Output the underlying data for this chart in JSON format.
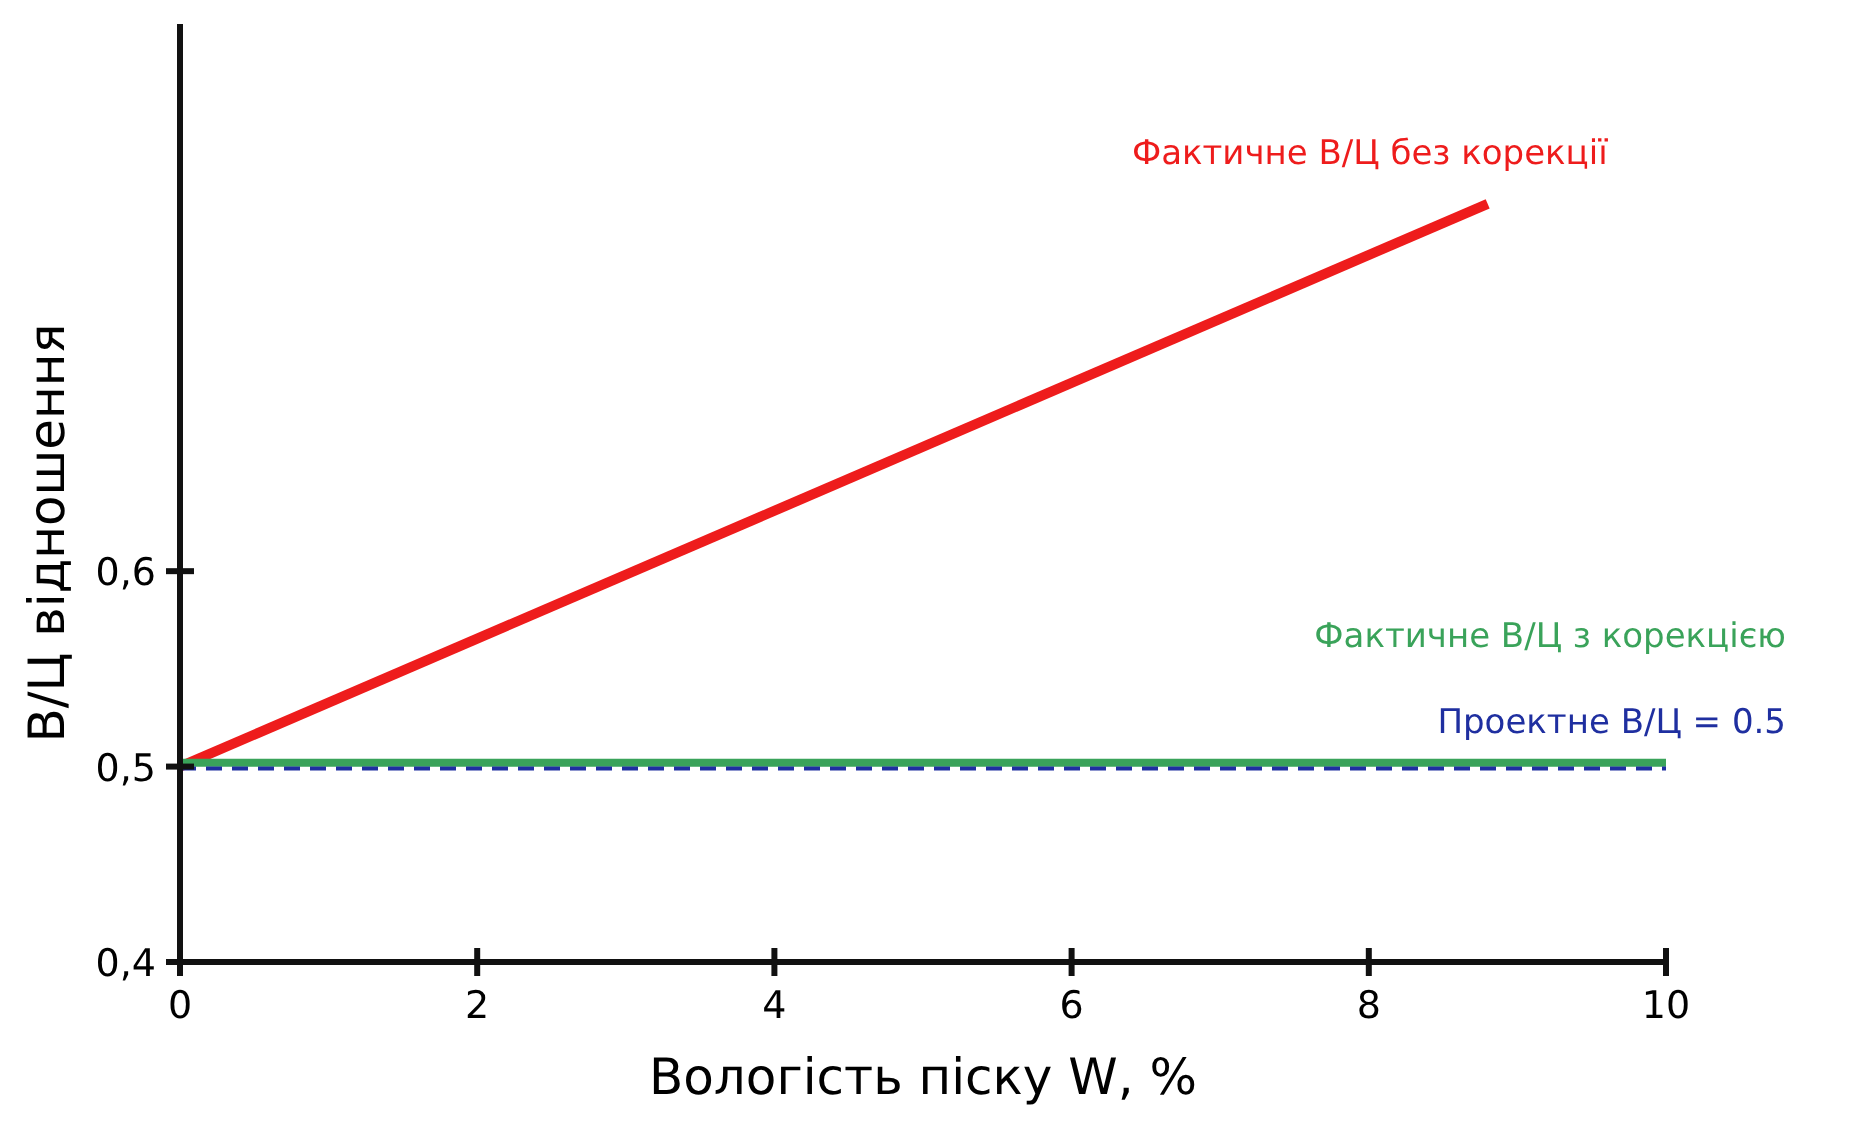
{
  "chart_data": {
    "type": "line",
    "xlabel": "Вологість піску W, %",
    "ylabel": "В/Ц відношення",
    "xlim": [
      0,
      10
    ],
    "xticks": [
      0,
      2,
      4,
      6,
      8,
      10
    ],
    "ylim": [
      0.4,
      0.88
    ],
    "yticks": [
      {
        "value": 0.4,
        "label": "0,4"
      },
      {
        "value": 0.5,
        "label": "0,5"
      },
      {
        "value": 0.6,
        "label": "0,6"
      }
    ],
    "grid": false,
    "marker": "none",
    "series": [
      {
        "name": "Фактичне В/Ц без корекції",
        "color": "#ee1c1c",
        "x": [
          0,
          8.8
        ],
        "values": [
          0.5,
          0.788
        ]
      },
      {
        "name": "Фактичне В/Ц з корекцією",
        "color": "#3aa35a",
        "x": [
          0,
          10
        ],
        "values": [
          0.502,
          0.502
        ]
      },
      {
        "name": "Проектне В/Ц = 0.5",
        "color": "#1f2fa0",
        "x": [
          0,
          10
        ],
        "values": [
          0.499,
          0.499
        ],
        "line_style": "dashed"
      }
    ]
  }
}
